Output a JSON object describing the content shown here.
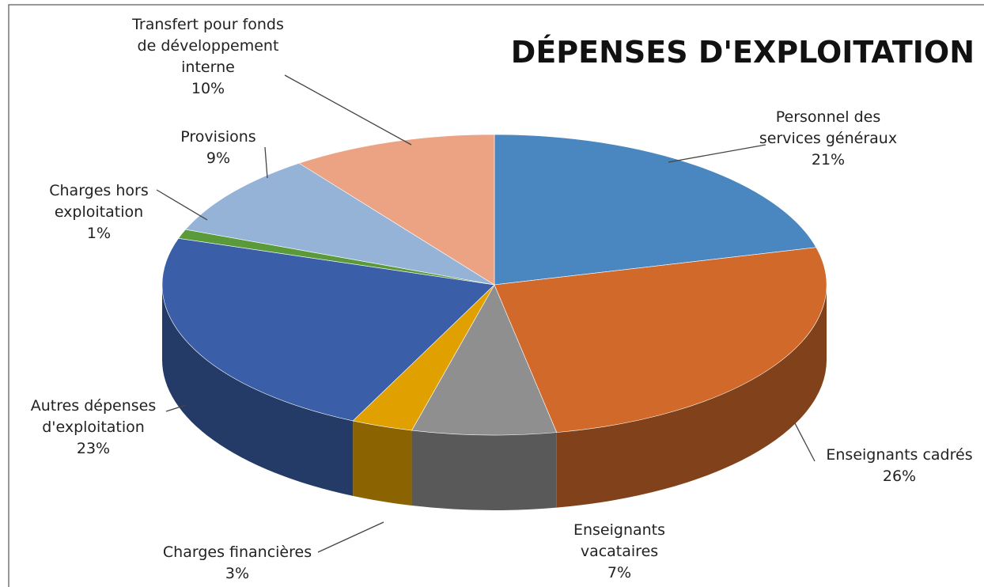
{
  "chart_data": {
    "type": "pie3d",
    "title": "DÉPENSES D'EXPLOITATION",
    "categories": [
      "Personnel des services généraux",
      "Enseignants cadrés",
      "Enseignants vacataires",
      "Charges financières",
      "Autres dépenses d'exploitation",
      "Charges hors exploitation",
      "Provisions",
      "Transfert pour fonds de développement interne"
    ],
    "values": [
      21,
      26,
      7,
      3,
      23,
      1,
      9,
      10
    ],
    "value_labels": [
      "21%",
      "26%",
      "7%",
      "3%",
      "23%",
      "1%",
      "9%",
      "10%"
    ],
    "colors": [
      "#4a86c0",
      "#d0692a",
      "#8f8f8f",
      "#e0a000",
      "#3a5fa8",
      "#5a9a3a",
      "#95b3d7",
      "#eba383"
    ]
  }
}
